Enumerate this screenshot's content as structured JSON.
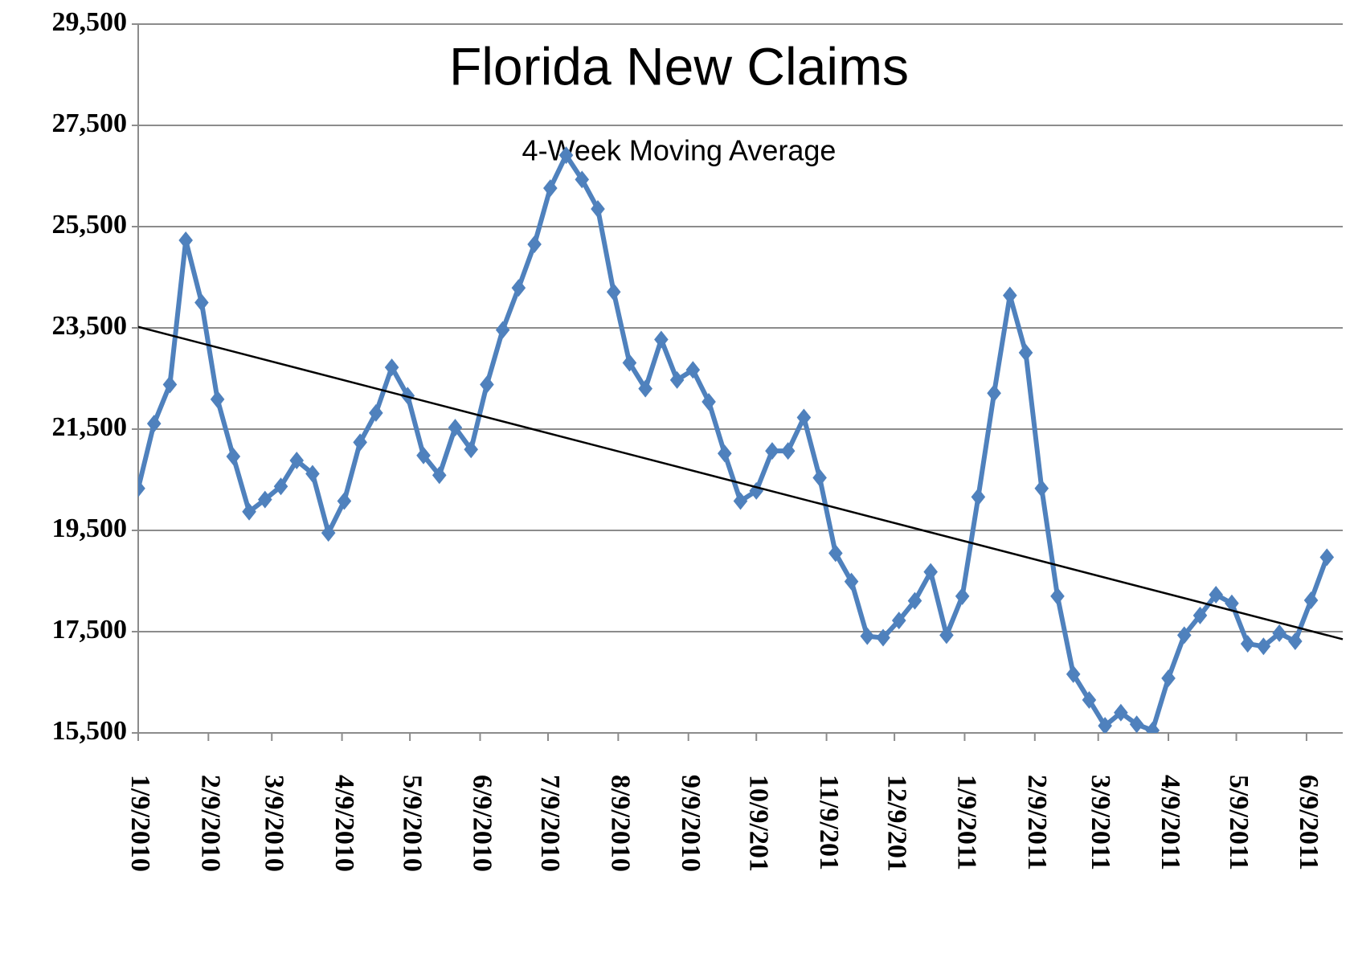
{
  "chart_data": {
    "type": "line",
    "title": "Florida New Claims",
    "subtitle": "4-Week Moving Average",
    "x": [
      0,
      7,
      14,
      21,
      28,
      35,
      42,
      49,
      56,
      63,
      70,
      77,
      84,
      91,
      98,
      105,
      112,
      119,
      126,
      133,
      140,
      147,
      154,
      161,
      168,
      175,
      182,
      189,
      196,
      203,
      210,
      217,
      224,
      231,
      238,
      245,
      252,
      259,
      266,
      273,
      280,
      287,
      294,
      301,
      308,
      315,
      322,
      329,
      336,
      343,
      350,
      357,
      364,
      371,
      378,
      385,
      392,
      399,
      406,
      413,
      420,
      427,
      434,
      441,
      448,
      455,
      462,
      469,
      476,
      483,
      490,
      497,
      504,
      511,
      518,
      525
    ],
    "series": [
      {
        "color": "#4f81bd",
        "values": [
          20330,
          21610,
          22380,
          25230,
          24000,
          22090,
          20960,
          19870,
          20110,
          20370,
          20880,
          20620,
          19450,
          20080,
          21240,
          21820,
          22720,
          22160,
          20980,
          20590,
          21530,
          21100,
          22380,
          23460,
          24290,
          25150,
          26260,
          26910,
          26430,
          25850,
          24210,
          22810,
          22300,
          23270,
          22470,
          22670,
          22040,
          21020,
          20080,
          20280,
          21070,
          21070,
          21730,
          20540,
          19050,
          18490,
          17410,
          17380,
          17720,
          18110,
          18680,
          17430,
          18200,
          20160,
          22210,
          24140,
          23010,
          20330,
          18200,
          16660,
          16150,
          15640,
          15900,
          15670,
          15550,
          16580,
          17430,
          17820,
          18230,
          18060,
          17260,
          17210,
          17470,
          17310,
          18120,
          18970
        ]
      }
    ],
    "trendline": {
      "x": [
        0,
        532
      ],
      "values": [
        23520,
        17350
      ],
      "color": "#000000"
    },
    "xlim": [
      0,
      532
    ],
    "xticks": [
      {
        "value": 0,
        "label": "1/9/2010"
      },
      {
        "value": 31,
        "label": "2/9/2010"
      },
      {
        "value": 59,
        "label": "3/9/2010"
      },
      {
        "value": 90,
        "label": "4/9/2010"
      },
      {
        "value": 120,
        "label": "5/9/2010"
      },
      {
        "value": 151,
        "label": "6/9/2010"
      },
      {
        "value": 181,
        "label": "7/9/2010"
      },
      {
        "value": 212,
        "label": "8/9/2010"
      },
      {
        "value": 243,
        "label": "9/9/2010"
      },
      {
        "value": 273,
        "label": "10/9/201"
      },
      {
        "value": 304,
        "label": "11/9/201"
      },
      {
        "value": 334,
        "label": "12/9/201"
      },
      {
        "value": 365,
        "label": "1/9/2011"
      },
      {
        "value": 396,
        "label": "2/9/2011"
      },
      {
        "value": 424,
        "label": "3/9/2011"
      },
      {
        "value": 455,
        "label": "4/9/2011"
      },
      {
        "value": 485,
        "label": "5/9/2011"
      },
      {
        "value": 516,
        "label": "6/9/2011"
      }
    ],
    "ylim": [
      15500,
      29500
    ],
    "yticks": [
      {
        "value": 15500,
        "label": "15,500"
      },
      {
        "value": 17500,
        "label": "17,500"
      },
      {
        "value": 19500,
        "label": "19,500"
      },
      {
        "value": 21500,
        "label": "21,500"
      },
      {
        "value": 23500,
        "label": "23,500"
      },
      {
        "value": 25500,
        "label": "25,500"
      },
      {
        "value": 27500,
        "label": "27,500"
      },
      {
        "value": 29500,
        "label": "29,500"
      }
    ],
    "grid": true
  }
}
